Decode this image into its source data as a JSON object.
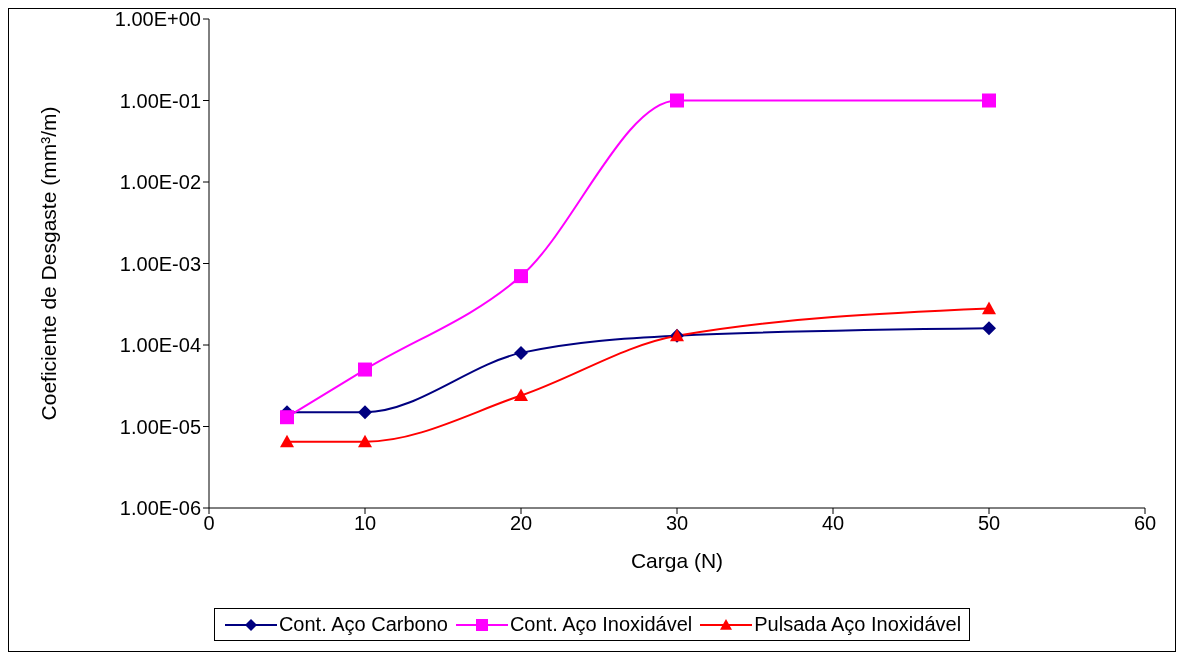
{
  "chart_data": {
    "type": "line",
    "xlabel": "Carga (N)",
    "ylabel": "Coeficiente de Desgaste (mm³/m)",
    "x": [
      5,
      10,
      20,
      30,
      50
    ],
    "series": [
      {
        "name": "Cont. Aço Carbono",
        "color": "#000080",
        "marker": "diamond",
        "values": [
          1.5e-05,
          1.5e-05,
          8e-05,
          0.00013,
          0.00016
        ]
      },
      {
        "name": "Cont. Aço Inoxidável",
        "color": "#ff00ff",
        "marker": "square",
        "values": [
          1.3e-05,
          5e-05,
          0.0007,
          0.1,
          0.1
        ]
      },
      {
        "name": "Pulsada Aço Inoxidável",
        "color": "#ff0000",
        "marker": "triangle",
        "values": [
          6.5e-06,
          6.5e-06,
          2.4e-05,
          0.00013,
          0.00028
        ]
      }
    ],
    "log": "y",
    "xlim": [
      0,
      60
    ],
    "xticks": [
      0,
      10,
      20,
      30,
      40,
      50,
      60
    ],
    "ylim": [
      1e-06,
      1
    ],
    "yticks": [
      {
        "value": 1e-06,
        "label": "1.00E-06"
      },
      {
        "value": 1e-05,
        "label": "1.00E-05"
      },
      {
        "value": 0.0001,
        "label": "1.00E-04"
      },
      {
        "value": 0.001,
        "label": "1.00E-03"
      },
      {
        "value": 0.01,
        "label": "1.00E-02"
      },
      {
        "value": 0.1,
        "label": "1.00E-01"
      },
      {
        "value": 1,
        "label": "1.00E+00"
      }
    ],
    "legend": "bottom",
    "line_style": "solid"
  }
}
